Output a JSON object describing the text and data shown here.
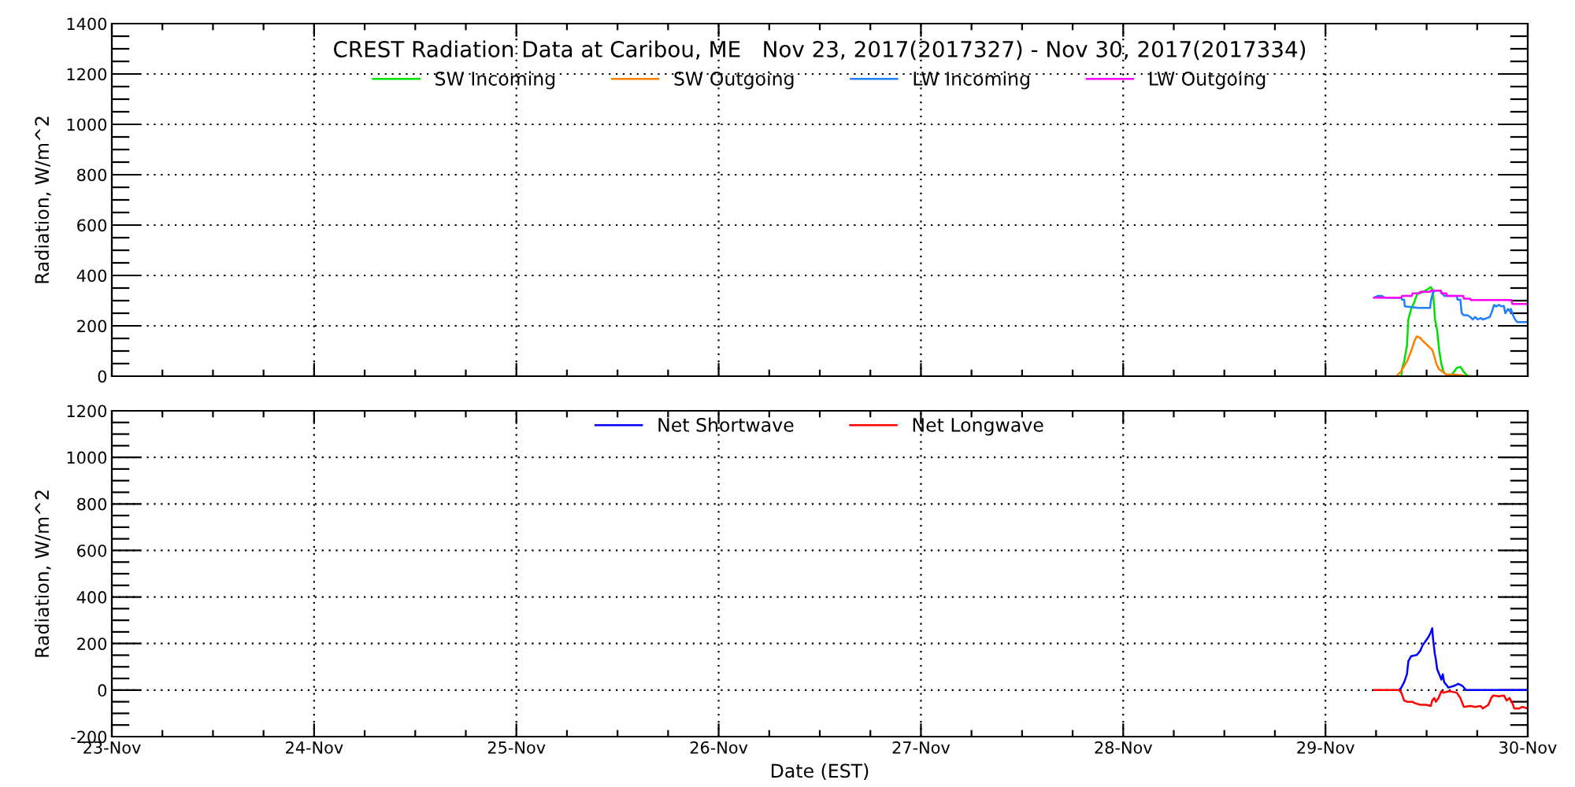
{
  "chart_data": [
    {
      "type": "line",
      "title": "CREST Radiation Data at Caribou, ME   Nov 23, 2017(2017327) - Nov 30, 2017(2017334)",
      "ylabel": "Radiation, W/m^2",
      "xlim": [
        "2017-11-23",
        "2017-11-30"
      ],
      "ylim": [
        0,
        1400
      ],
      "yticks": [
        0,
        {
          "value": 50,
          "label": null
        },
        {
          "value": 100,
          "label": null
        },
        {
          "value": 150,
          "label": null
        },
        200,
        {
          "value": 250,
          "label": null
        },
        {
          "value": 300,
          "label": null
        },
        {
          "value": 350,
          "label": null
        },
        400,
        {
          "value": 450,
          "label": null
        },
        {
          "value": 500,
          "label": null
        },
        {
          "value": 550,
          "label": null
        },
        600,
        {
          "value": 650,
          "label": null
        },
        {
          "value": 700,
          "label": null
        },
        {
          "value": 750,
          "label": null
        },
        800,
        {
          "value": 850,
          "label": null
        },
        {
          "value": 900,
          "label": null
        },
        {
          "value": 950,
          "label": null
        },
        1000,
        {
          "value": 1050,
          "label": null
        },
        {
          "value": 1100,
          "label": null
        },
        {
          "value": 1150,
          "label": null
        },
        1200,
        {
          "value": 1250,
          "label": null
        },
        {
          "value": 1300,
          "label": null
        },
        {
          "value": 1350,
          "label": null
        },
        1400
      ],
      "grid": true,
      "legend": "top",
      "tick_labels": "y",
      "series": [
        {
          "name": "SW Incoming",
          "color": "#00e000",
          "x": [
            "2017-11-29T09:00",
            "2017-11-29T09:05",
            "2017-11-29T09:20",
            "2017-11-29T09:40",
            "2017-11-29T09:50",
            "2017-11-29T10:10",
            "2017-11-29T10:35",
            "2017-11-29T10:55",
            "2017-11-29T11:30",
            "2017-11-29T12:10",
            "2017-11-29T12:30",
            "2017-11-29T12:45",
            "2017-11-29T13:00",
            "2017-11-29T13:15",
            "2017-11-29T13:30",
            "2017-11-29T13:45",
            "2017-11-29T14:00",
            "2017-11-29T14:20",
            "2017-11-29T15:00",
            "2017-11-29T15:35",
            "2017-11-29T16:00",
            "2017-11-29T16:25",
            "2017-11-29T16:50",
            "2017-11-29T17:10"
          ],
          "values": [
            0,
            27,
            58,
            121,
            225,
            267,
            298,
            329,
            333,
            346,
            354,
            340,
            225,
            183,
            100,
            48,
            17,
            6,
            6,
            33,
            37,
            17,
            2,
            0
          ]
        },
        {
          "name": "SW Outgoing",
          "color": "#ff7f00",
          "x": [
            "2017-11-29T08:25",
            "2017-11-29T08:55",
            "2017-11-29T09:40",
            "2017-11-29T10:10",
            "2017-11-29T10:35",
            "2017-11-29T10:50",
            "2017-11-29T11:15",
            "2017-11-29T11:30",
            "2017-11-29T12:10",
            "2017-11-29T12:40",
            "2017-11-29T12:55",
            "2017-11-29T13:10",
            "2017-11-29T13:30",
            "2017-11-29T13:55",
            "2017-11-29T14:20",
            "2017-11-29T15:15",
            "2017-11-29T16:30"
          ],
          "values": [
            0,
            17,
            58,
            100,
            142,
            158,
            152,
            142,
            121,
            104,
            79,
            48,
            27,
            17,
            6,
            6,
            2
          ]
        },
        {
          "name": "LW Incoming",
          "color": "#1e80ff",
          "x": [
            "2017-11-29T05:45",
            "2017-11-29T06:15",
            "2017-11-29T06:40",
            "2017-11-29T07:00",
            "2017-11-29T09:00",
            "2017-11-29T09:05",
            "2017-11-29T09:20",
            "2017-11-29T09:25",
            "2017-11-29T11:00",
            "2017-11-29T12:25",
            "2017-11-29T12:30",
            "2017-11-29T12:45",
            "2017-11-29T13:05",
            "2017-11-29T13:40",
            "2017-11-29T13:55",
            "2017-11-29T14:05",
            "2017-11-29T15:35",
            "2017-11-29T15:40",
            "2017-11-29T16:00",
            "2017-11-29T16:10",
            "2017-11-29T16:25",
            "2017-11-29T16:50",
            "2017-11-29T17:10",
            "2017-11-29T17:30",
            "2017-11-29T17:45",
            "2017-11-29T18:05",
            "2017-11-29T18:25",
            "2017-11-29T18:40",
            "2017-11-29T19:10",
            "2017-11-29T19:30",
            "2017-11-29T19:45",
            "2017-11-29T20:00",
            "2017-11-29T20:15",
            "2017-11-29T20:35",
            "2017-11-29T20:55",
            "2017-11-29T21:10",
            "2017-11-29T21:20",
            "2017-11-29T21:40",
            "2017-11-29T21:55",
            "2017-11-29T22:00",
            "2017-11-29T22:15",
            "2017-11-29T22:30",
            "2017-11-29T22:45",
            "2017-11-30T00:00"
          ],
          "values": [
            312,
            319,
            319,
            312,
            312,
            304,
            304,
            277,
            271,
            271,
            298,
            333,
            340,
            340,
            325,
            319,
            319,
            304,
            304,
            250,
            242,
            242,
            235,
            225,
            235,
            225,
            231,
            225,
            231,
            235,
            256,
            283,
            277,
            283,
            277,
            279,
            250,
            267,
            256,
            267,
            242,
            225,
            215,
            215
          ]
        },
        {
          "name": "LW Outgoing",
          "color": "#ff00ff",
          "x": [
            "2017-11-29T05:45",
            "2017-11-29T09:00",
            "2017-11-29T09:05",
            "2017-11-29T10:15",
            "2017-11-29T10:20",
            "2017-11-29T11:10",
            "2017-11-29T11:15",
            "2017-11-29T12:25",
            "2017-11-29T12:30",
            "2017-11-29T13:40",
            "2017-11-29T13:45",
            "2017-11-29T14:20",
            "2017-11-29T14:25",
            "2017-11-29T16:20",
            "2017-11-29T16:25",
            "2017-11-29T17:10",
            "2017-11-29T17:15",
            "2017-11-29T22:05",
            "2017-11-29T22:10",
            "2017-11-30T00:00"
          ],
          "values": [
            312,
            312,
            319,
            319,
            329,
            329,
            335,
            335,
            340,
            340,
            329,
            329,
            319,
            319,
            308,
            308,
            302,
            302,
            287,
            287
          ]
        }
      ]
    },
    {
      "type": "line",
      "xlabel": "Date (EST)",
      "ylabel": "Radiation, W/m^2",
      "xlim": [
        "2017-11-23",
        "2017-11-30"
      ],
      "xticks": [
        {
          "value": "2017-11-23",
          "label": "23-Nov"
        },
        {
          "value": "2017-11-23T06:00",
          "label": null
        },
        {
          "value": "2017-11-23T12:00",
          "label": null
        },
        {
          "value": "2017-11-23T18:00",
          "label": null
        },
        {
          "value": "2017-11-24",
          "label": "24-Nov"
        },
        {
          "value": "2017-11-24T06:00",
          "label": null
        },
        {
          "value": "2017-11-24T12:00",
          "label": null
        },
        {
          "value": "2017-11-24T18:00",
          "label": null
        },
        {
          "value": "2017-11-25",
          "label": "25-Nov"
        },
        {
          "value": "2017-11-25T06:00",
          "label": null
        },
        {
          "value": "2017-11-25T12:00",
          "label": null
        },
        {
          "value": "2017-11-25T18:00",
          "label": null
        },
        {
          "value": "2017-11-26",
          "label": "26-Nov"
        },
        {
          "value": "2017-11-26T06:00",
          "label": null
        },
        {
          "value": "2017-11-26T12:00",
          "label": null
        },
        {
          "value": "2017-11-26T18:00",
          "label": null
        },
        {
          "value": "2017-11-27",
          "label": "27-Nov"
        },
        {
          "value": "2017-11-27T06:00",
          "label": null
        },
        {
          "value": "2017-11-27T12:00",
          "label": null
        },
        {
          "value": "2017-11-27T18:00",
          "label": null
        },
        {
          "value": "2017-11-28",
          "label": "28-Nov"
        },
        {
          "value": "2017-11-28T06:00",
          "label": null
        },
        {
          "value": "2017-11-28T12:00",
          "label": null
        },
        {
          "value": "2017-11-28T18:00",
          "label": null
        },
        {
          "value": "2017-11-29",
          "label": "29-Nov"
        },
        {
          "value": "2017-11-29T06:00",
          "label": null
        },
        {
          "value": "2017-11-29T12:00",
          "label": null
        },
        {
          "value": "2017-11-29T18:00",
          "label": null
        },
        {
          "value": "2017-11-30",
          "label": "30-Nov"
        }
      ],
      "ylim": [
        -200,
        1200
      ],
      "yticks": [
        -200,
        {
          "value": -150,
          "label": null
        },
        {
          "value": -100,
          "label": null
        },
        {
          "value": -50,
          "label": null
        },
        0,
        {
          "value": 50,
          "label": null
        },
        {
          "value": 100,
          "label": null
        },
        {
          "value": 150,
          "label": null
        },
        200,
        {
          "value": 250,
          "label": null
        },
        {
          "value": 300,
          "label": null
        },
        {
          "value": 350,
          "label": null
        },
        400,
        {
          "value": 450,
          "label": null
        },
        {
          "value": 500,
          "label": null
        },
        {
          "value": 550,
          "label": null
        },
        600,
        {
          "value": 650,
          "label": null
        },
        {
          "value": 700,
          "label": null
        },
        {
          "value": 750,
          "label": null
        },
        800,
        {
          "value": 850,
          "label": null
        },
        {
          "value": 900,
          "label": null
        },
        {
          "value": 950,
          "label": null
        },
        1000,
        {
          "value": 1050,
          "label": null
        },
        {
          "value": 1100,
          "label": null
        },
        {
          "value": 1150,
          "label": null
        },
        1200
      ],
      "grid": true,
      "legend": "top",
      "series": [
        {
          "name": "Net Shortwave",
          "color": "#0000ff",
          "x": [
            "2017-11-29T08:45",
            "2017-11-29T09:00",
            "2017-11-29T09:20",
            "2017-11-29T09:40",
            "2017-11-29T09:50",
            "2017-11-29T10:10",
            "2017-11-29T10:50",
            "2017-11-29T11:15",
            "2017-11-29T11:30",
            "2017-11-29T12:10",
            "2017-11-29T12:30",
            "2017-11-29T12:40",
            "2017-11-29T12:45",
            "2017-11-29T12:58",
            "2017-11-29T13:05",
            "2017-11-29T13:15",
            "2017-11-29T13:30",
            "2017-11-29T13:45",
            "2017-11-29T13:55",
            "2017-11-29T14:05",
            "2017-11-29T14:35",
            "2017-11-29T15:15",
            "2017-11-29T15:45",
            "2017-11-29T16:15",
            "2017-11-29T16:40",
            "2017-11-30T00:00"
          ],
          "values": [
            0,
            11,
            34,
            68,
            124,
            146,
            151,
            169,
            191,
            225,
            248,
            266,
            225,
            158,
            135,
            90,
            68,
            45,
            68,
            34,
            11,
            18,
            27,
            18,
            0,
            0
          ]
        },
        {
          "name": "Net Longwave",
          "color": "#ff0000",
          "x": [
            "2017-11-29T05:45",
            "2017-11-29T08:45",
            "2017-11-29T09:00",
            "2017-11-29T09:20",
            "2017-11-29T09:40",
            "2017-11-29T10:20",
            "2017-11-29T10:35",
            "2017-11-29T11:15",
            "2017-11-29T11:55",
            "2017-11-29T12:30",
            "2017-11-29T12:40",
            "2017-11-29T12:55",
            "2017-11-29T13:05",
            "2017-11-29T13:25",
            "2017-11-29T13:45",
            "2017-11-29T14:00",
            "2017-11-29T14:40",
            "2017-11-29T15:35",
            "2017-11-29T16:00",
            "2017-11-29T16:25",
            "2017-11-29T17:10",
            "2017-11-29T17:45",
            "2017-11-29T18:25",
            "2017-11-29T18:40",
            "2017-11-29T19:20",
            "2017-11-29T19:40",
            "2017-11-29T19:55",
            "2017-11-29T20:35",
            "2017-11-29T21:10",
            "2017-11-29T21:30",
            "2017-11-29T21:50",
            "2017-11-29T22:10",
            "2017-11-29T22:25",
            "2017-11-29T23:00",
            "2017-11-29T23:20",
            "2017-11-30T00:00"
          ],
          "values": [
            0,
            0,
            -11,
            -45,
            -50,
            -50,
            -56,
            -63,
            -63,
            -68,
            -45,
            -34,
            -50,
            -34,
            -5,
            -11,
            -5,
            -11,
            -34,
            -72,
            -68,
            -72,
            -68,
            -79,
            -63,
            -34,
            -23,
            -27,
            -23,
            -45,
            -34,
            -56,
            -79,
            -79,
            -72,
            -79
          ]
        }
      ]
    }
  ]
}
